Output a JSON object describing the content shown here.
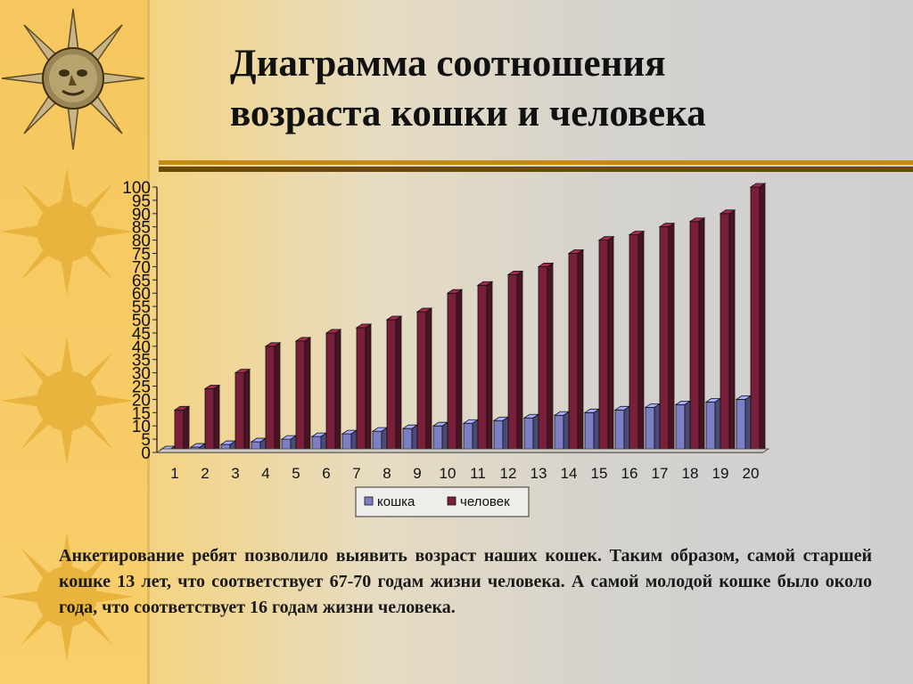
{
  "slide": {
    "title_line1": "Диаграмма соотношения",
    "title_line2": "возраста кошки и человека",
    "caption": "Анкетирование ребят позволило выявить возраст наших кошек. Таким образом, самой старшей кошке 13 лет, что соответствует 67-70 годам жизни человека. А самой молодой кошке было около года, что соответствует 16 годам жизни человека."
  },
  "colors": {
    "cat": "#7c7fc6",
    "human": "#7a1f3a",
    "accent_gold": "#c48a14"
  },
  "chart_data": {
    "type": "bar",
    "style": "3d-clustered",
    "categories": [
      "1",
      "2",
      "3",
      "4",
      "5",
      "6",
      "7",
      "8",
      "9",
      "10",
      "11",
      "12",
      "13",
      "14",
      "15",
      "16",
      "17",
      "18",
      "19",
      "20"
    ],
    "series": [
      {
        "name": "кошка",
        "color": "#7c7fc6",
        "values": [
          1,
          2,
          3,
          4,
          5,
          6,
          7,
          8,
          9,
          10,
          11,
          12,
          13,
          14,
          15,
          16,
          17,
          18,
          19,
          20
        ]
      },
      {
        "name": "человек",
        "color": "#7a1f3a",
        "values": [
          16,
          24,
          30,
          40,
          42,
          45,
          47,
          50,
          53,
          60,
          63,
          67,
          70,
          75,
          80,
          82,
          85,
          87,
          90,
          100
        ]
      }
    ],
    "y_ticks": [
      "0",
      "5",
      "10",
      "15",
      "20",
      "25",
      "30",
      "35",
      "40",
      "45",
      "50",
      "55",
      "60",
      "65",
      "70",
      "75",
      "80",
      "85",
      "90",
      "95",
      "100"
    ],
    "ylim": [
      0,
      100
    ],
    "legend": "bottom-center",
    "grid": false
  }
}
